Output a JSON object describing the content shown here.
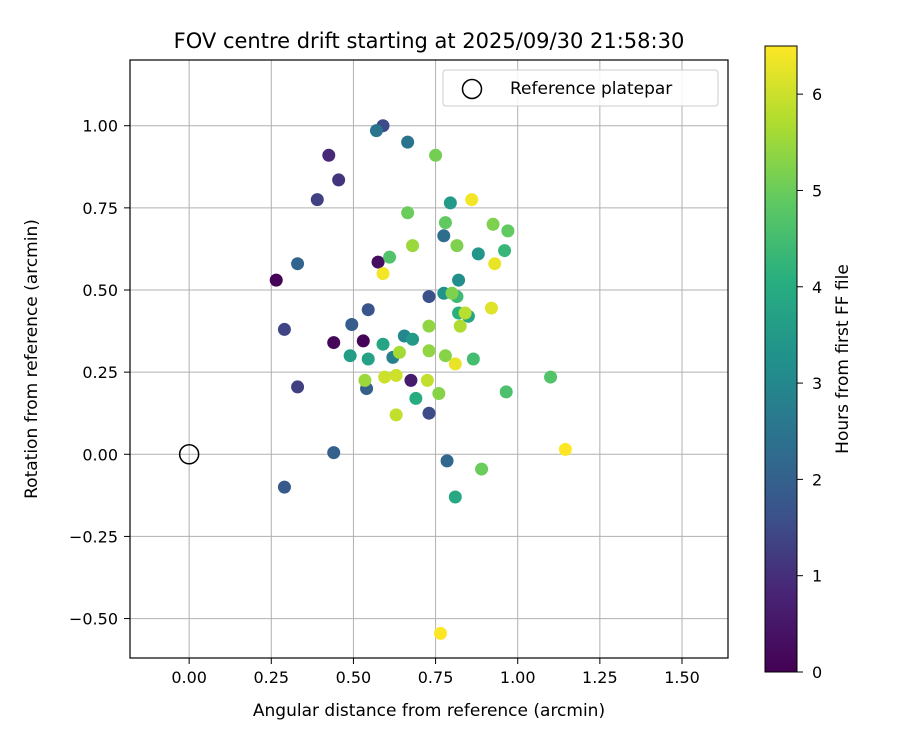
{
  "chart_data": {
    "type": "scatter",
    "title": "FOV centre drift starting at 2025/09/30 21:58:30",
    "xlabel": "Angular distance from reference (arcmin)",
    "ylabel": "Rotation from reference (arcmin)",
    "xlim": [
      -0.18,
      1.64
    ],
    "ylim": [
      -0.62,
      1.2
    ],
    "xticks": [
      0.0,
      0.25,
      0.5,
      0.75,
      1.0,
      1.25,
      1.5
    ],
    "xtick_labels": [
      "0.00",
      "0.25",
      "0.50",
      "0.75",
      "1.00",
      "1.25",
      "1.50"
    ],
    "yticks": [
      -0.5,
      -0.25,
      0.0,
      0.25,
      0.5,
      0.75,
      1.0
    ],
    "ytick_labels": [
      "−0.50",
      "−0.25",
      "0.00",
      "0.25",
      "0.50",
      "0.75",
      "1.00"
    ],
    "grid": true,
    "legend": {
      "position": "top-right",
      "entries": [
        "Reference platepar"
      ]
    },
    "reference_point": {
      "label": "Reference platepar",
      "x": 0.0,
      "y": 0.0
    },
    "colorbar": {
      "label": "Hours from first FF file",
      "colormap": "viridis",
      "range": [
        0,
        6.5
      ],
      "ticks": [
        0,
        1,
        2,
        3,
        4,
        5,
        6
      ],
      "tick_labels": [
        "0",
        "1",
        "2",
        "3",
        "4",
        "5",
        "6"
      ]
    },
    "points": [
      {
        "x": 0.265,
        "y": 0.53,
        "c": 0.05
      },
      {
        "x": 0.53,
        "y": 0.345,
        "c": 0.1
      },
      {
        "x": 0.44,
        "y": 0.34,
        "c": 0.15
      },
      {
        "x": 0.575,
        "y": 0.585,
        "c": 0.3
      },
      {
        "x": 0.675,
        "y": 0.225,
        "c": 0.6
      },
      {
        "x": 0.425,
        "y": 0.91,
        "c": 0.9
      },
      {
        "x": 0.455,
        "y": 0.835,
        "c": 1.1
      },
      {
        "x": 0.39,
        "y": 0.775,
        "c": 1.3
      },
      {
        "x": 0.33,
        "y": 0.205,
        "c": 1.3
      },
      {
        "x": 0.29,
        "y": 0.38,
        "c": 1.4
      },
      {
        "x": 0.59,
        "y": 1.0,
        "c": 1.5
      },
      {
        "x": 0.73,
        "y": 0.125,
        "c": 1.5
      },
      {
        "x": 0.73,
        "y": 0.48,
        "c": 1.6
      },
      {
        "x": 0.545,
        "y": 0.44,
        "c": 1.7
      },
      {
        "x": 0.29,
        "y": -0.1,
        "c": 1.8
      },
      {
        "x": 0.495,
        "y": 0.395,
        "c": 1.9
      },
      {
        "x": 0.54,
        "y": 0.2,
        "c": 2.0
      },
      {
        "x": 0.44,
        "y": 0.005,
        "c": 2.0
      },
      {
        "x": 0.33,
        "y": 0.58,
        "c": 2.1
      },
      {
        "x": 0.785,
        "y": -0.02,
        "c": 2.2
      },
      {
        "x": 0.775,
        "y": 0.665,
        "c": 2.3
      },
      {
        "x": 0.57,
        "y": 0.985,
        "c": 2.5
      },
      {
        "x": 0.665,
        "y": 0.95,
        "c": 2.5
      },
      {
        "x": 0.62,
        "y": 0.295,
        "c": 2.8
      },
      {
        "x": 0.655,
        "y": 0.36,
        "c": 3.0
      },
      {
        "x": 0.82,
        "y": 0.53,
        "c": 3.2
      },
      {
        "x": 0.775,
        "y": 0.49,
        "c": 3.3
      },
      {
        "x": 0.88,
        "y": 0.61,
        "c": 3.4
      },
      {
        "x": 0.795,
        "y": 0.765,
        "c": 3.5
      },
      {
        "x": 0.68,
        "y": 0.35,
        "c": 3.5
      },
      {
        "x": 0.49,
        "y": 0.3,
        "c": 3.6
      },
      {
        "x": 0.545,
        "y": 0.29,
        "c": 3.7
      },
      {
        "x": 0.59,
        "y": 0.335,
        "c": 3.8
      },
      {
        "x": 0.85,
        "y": 0.42,
        "c": 3.8
      },
      {
        "x": 0.81,
        "y": -0.13,
        "c": 3.9
      },
      {
        "x": 0.69,
        "y": 0.17,
        "c": 4.0
      },
      {
        "x": 0.82,
        "y": 0.43,
        "c": 4.1
      },
      {
        "x": 0.96,
        "y": 0.62,
        "c": 4.3
      },
      {
        "x": 0.815,
        "y": 0.48,
        "c": 4.4
      },
      {
        "x": 0.865,
        "y": 0.29,
        "c": 4.5
      },
      {
        "x": 0.965,
        "y": 0.19,
        "c": 4.6
      },
      {
        "x": 1.1,
        "y": 0.235,
        "c": 4.7
      },
      {
        "x": 0.61,
        "y": 0.6,
        "c": 4.7
      },
      {
        "x": 0.97,
        "y": 0.68,
        "c": 4.9
      },
      {
        "x": 0.78,
        "y": 0.705,
        "c": 4.9
      },
      {
        "x": 0.665,
        "y": 0.735,
        "c": 5.0
      },
      {
        "x": 0.89,
        "y": -0.045,
        "c": 5.0
      },
      {
        "x": 0.75,
        "y": 0.91,
        "c": 5.1
      },
      {
        "x": 0.815,
        "y": 0.635,
        "c": 5.2
      },
      {
        "x": 0.925,
        "y": 0.7,
        "c": 5.2
      },
      {
        "x": 0.8,
        "y": 0.49,
        "c": 5.2
      },
      {
        "x": 0.76,
        "y": 0.185,
        "c": 5.3
      },
      {
        "x": 0.78,
        "y": 0.3,
        "c": 5.3
      },
      {
        "x": 0.73,
        "y": 0.315,
        "c": 5.4
      },
      {
        "x": 0.73,
        "y": 0.39,
        "c": 5.4
      },
      {
        "x": 0.68,
        "y": 0.635,
        "c": 5.5
      },
      {
        "x": 0.535,
        "y": 0.225,
        "c": 5.5
      },
      {
        "x": 0.64,
        "y": 0.31,
        "c": 5.6
      },
      {
        "x": 0.825,
        "y": 0.39,
        "c": 5.7
      },
      {
        "x": 0.84,
        "y": 0.43,
        "c": 5.8
      },
      {
        "x": 0.63,
        "y": 0.12,
        "c": 5.9
      },
      {
        "x": 0.725,
        "y": 0.225,
        "c": 5.9
      },
      {
        "x": 0.595,
        "y": 0.235,
        "c": 6.0
      },
      {
        "x": 0.63,
        "y": 0.24,
        "c": 6.0
      },
      {
        "x": 0.92,
        "y": 0.445,
        "c": 6.2
      },
      {
        "x": 0.81,
        "y": 0.275,
        "c": 6.3
      },
      {
        "x": 0.93,
        "y": 0.58,
        "c": 6.3
      },
      {
        "x": 0.59,
        "y": 0.55,
        "c": 6.4
      },
      {
        "x": 0.86,
        "y": 0.775,
        "c": 6.4
      },
      {
        "x": 0.765,
        "y": -0.545,
        "c": 6.5
      },
      {
        "x": 1.145,
        "y": 0.015,
        "c": 6.5
      }
    ]
  }
}
